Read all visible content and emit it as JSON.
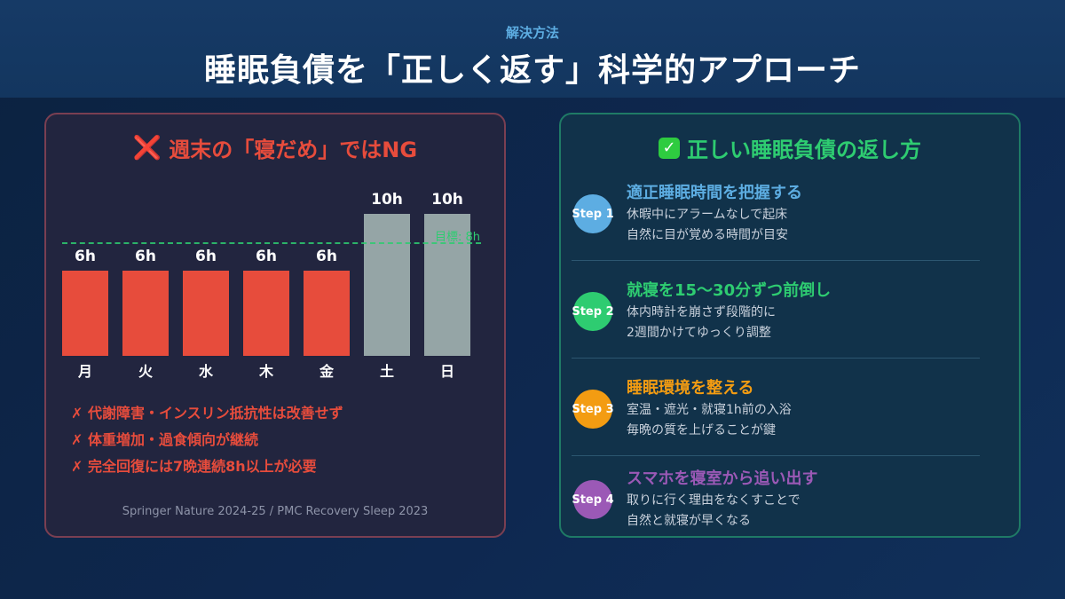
{
  "header": {
    "eyebrow": "解決方法",
    "title": "睡眠負債を「正しく返す」科学的アプローチ"
  },
  "left_panel": {
    "icon": "cross-mark-icon",
    "icon_glyph": "❌",
    "title": "週末の「寝だめ」ではNG",
    "notes": [
      "✗ 代謝障害・インスリン抵抗性は改善せず",
      "✗ 体重増加・過食傾向が継続",
      "✗ 完全回復には7晩連続8h以上が必要"
    ],
    "source": "Springer Nature 2024-25 / PMC Recovery Sleep 2023"
  },
  "chart_data": {
    "type": "bar",
    "title": "週末の「寝だめ」ではNG",
    "categories": [
      "月",
      "火",
      "水",
      "木",
      "金",
      "土",
      "日"
    ],
    "values": [
      6,
      6,
      6,
      6,
      6,
      10,
      10
    ],
    "value_labels": [
      "6h",
      "6h",
      "6h",
      "6h",
      "6h",
      "10h",
      "10h"
    ],
    "colors": [
      "#e74c3c",
      "#e74c3c",
      "#e74c3c",
      "#e74c3c",
      "#e74c3c",
      "#95a5a6",
      "#95a5a6"
    ],
    "unit": "h",
    "xlabel": "",
    "ylabel": "",
    "ylim": [
      0,
      10
    ],
    "grid": false,
    "reference_line": {
      "value": 8,
      "label": "目標: 8h",
      "color": "#2ecc71",
      "style": "dashed"
    }
  },
  "right_panel": {
    "icon": "check-mark-icon",
    "icon_glyph": "✓",
    "title": "正しい睡眠負債の返し方",
    "steps": [
      {
        "badge": "Step 1",
        "color": "#5dade2",
        "title": "適正睡眠時間を把握する",
        "lines": [
          "休暇中にアラームなしで起床",
          "自然に目が覚める時間が目安"
        ]
      },
      {
        "badge": "Step 2",
        "color": "#2ecc71",
        "title": "就寝を15〜30分ずつ前倒し",
        "lines": [
          "体内時計を崩さず段階的に",
          "2週間かけてゆっくり調整"
        ]
      },
      {
        "badge": "Step 3",
        "color": "#f39c12",
        "title": "睡眠環境を整える",
        "lines": [
          "室温・遮光・就寝1h前の入浴",
          "毎晩の質を上げることが鍵"
        ]
      },
      {
        "badge": "Step 4",
        "color": "#9b59b6",
        "title": "スマホを寝室から追い出す",
        "lines": [
          "取りに行く理由をなくすことで",
          "自然と就寝が早くなる"
        ]
      }
    ]
  }
}
